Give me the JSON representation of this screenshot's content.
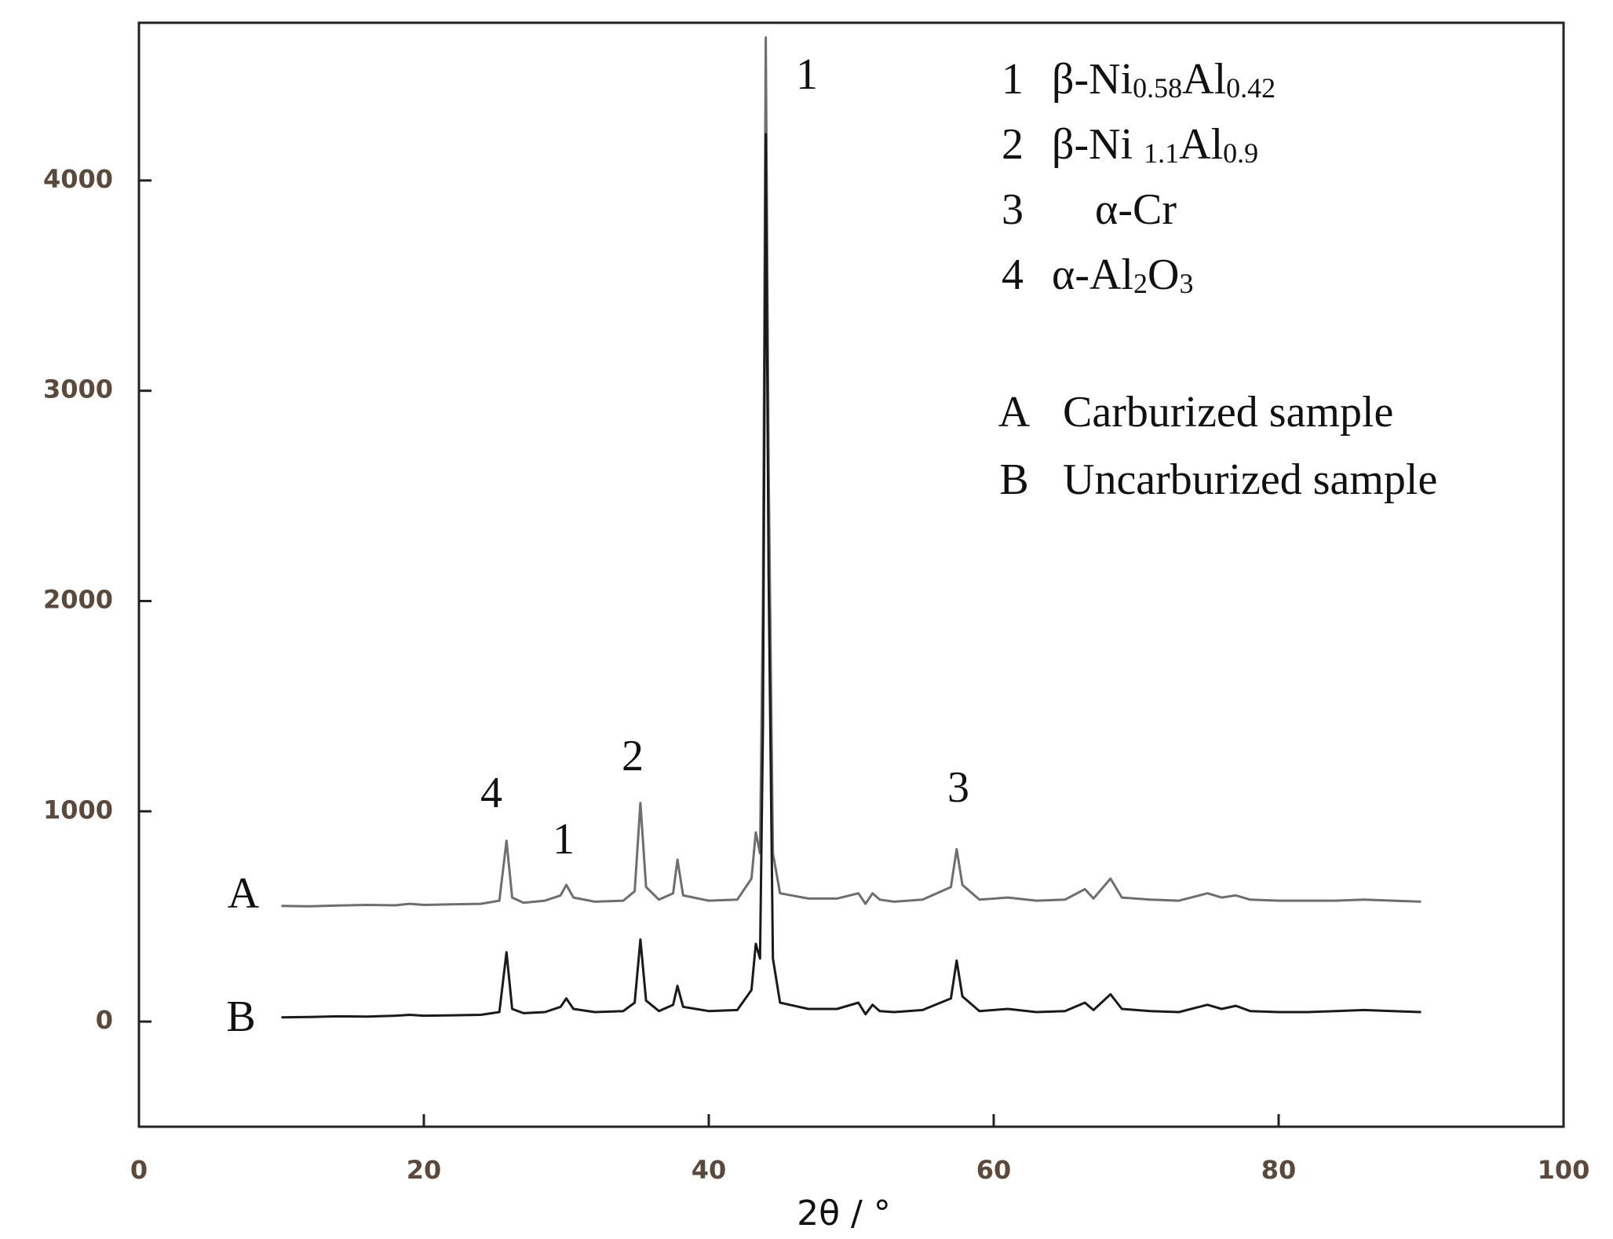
{
  "chart_data": {
    "type": "line",
    "xlabel": "2θ / °",
    "xlim": [
      0,
      100
    ],
    "xticks": [
      0,
      20,
      40,
      60,
      80,
      100
    ],
    "ylim": [
      -500,
      4750
    ],
    "yticks": [
      0,
      1000,
      2000,
      3000,
      4000
    ],
    "x": [
      10,
      12,
      14,
      16,
      18,
      19,
      20,
      22,
      24,
      25.3,
      25.8,
      26.2,
      27,
      28.5,
      29.6,
      30,
      30.5,
      32,
      34,
      34.8,
      35.2,
      35.6,
      36.5,
      37.5,
      37.8,
      38.2,
      40,
      42,
      43,
      43.3,
      43.6,
      43.8,
      44,
      44.2,
      44.5,
      45,
      47,
      49,
      50.5,
      51,
      51.5,
      52,
      53,
      55,
      57,
      57.4,
      57.8,
      59,
      61,
      63,
      65,
      66.4,
      67,
      68.2,
      69,
      71,
      73,
      75,
      76,
      77,
      78,
      80,
      82,
      84,
      86,
      88,
      90
    ],
    "series": [
      {
        "name": "A",
        "description": "Carburized sample",
        "color": "#6e6e6e",
        "values": [
          550,
          548,
          552,
          555,
          553,
          560,
          555,
          558,
          560,
          575,
          860,
          590,
          565,
          575,
          600,
          650,
          590,
          570,
          575,
          620,
          1040,
          640,
          580,
          610,
          770,
          600,
          575,
          580,
          680,
          900,
          800,
          2000,
          4680,
          2650,
          800,
          610,
          585,
          585,
          610,
          560,
          610,
          580,
          570,
          580,
          640,
          820,
          650,
          580,
          590,
          575,
          580,
          630,
          585,
          680,
          590,
          580,
          575,
          610,
          590,
          600,
          580,
          575,
          575,
          575,
          580,
          575,
          570
        ]
      },
      {
        "name": "B",
        "description": "Uncarburized sample",
        "color": "#1a1a1a",
        "values": [
          20,
          22,
          25,
          24,
          28,
          32,
          28,
          30,
          32,
          45,
          330,
          60,
          40,
          45,
          70,
          110,
          60,
          45,
          50,
          90,
          390,
          100,
          50,
          80,
          170,
          70,
          50,
          55,
          150,
          370,
          300,
          1400,
          4220,
          2130,
          300,
          90,
          60,
          60,
          90,
          35,
          80,
          50,
          45,
          55,
          110,
          290,
          120,
          50,
          60,
          45,
          50,
          90,
          55,
          130,
          60,
          50,
          45,
          80,
          60,
          75,
          50,
          45,
          45,
          50,
          55,
          50,
          45
        ]
      }
    ],
    "peak_labels": [
      "1",
      "4",
      "1",
      "2",
      "3"
    ],
    "phases": [
      {
        "id": "1",
        "parts": [
          "β-Ni",
          "0.58",
          "Al",
          "0.42"
        ]
      },
      {
        "id": "2",
        "parts": [
          "β-Ni ",
          "1.1",
          "Al",
          "0.9"
        ]
      },
      {
        "id": "3",
        "parts": [
          "α-Cr"
        ]
      },
      {
        "id": "4",
        "parts": [
          "α-Al",
          "2",
          "O",
          "3"
        ]
      }
    ]
  }
}
